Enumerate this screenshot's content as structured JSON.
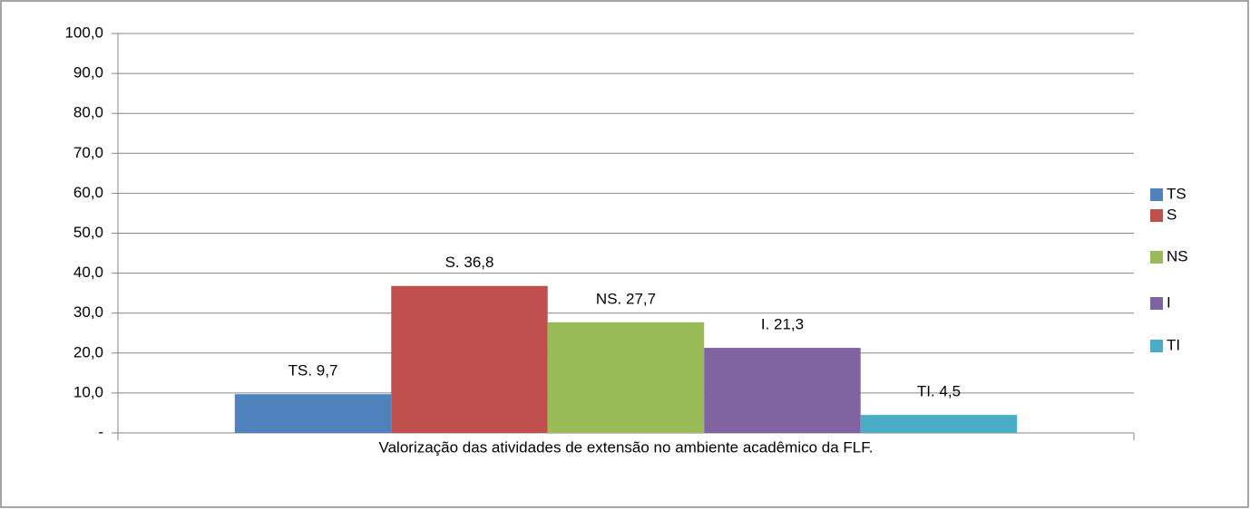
{
  "chart_data": {
    "type": "bar",
    "categories": [
      "Valorização das atividades de extensão no ambiente acadêmico da FLF."
    ],
    "series": [
      {
        "name": "TS",
        "color": "#4f81bd",
        "values": [
          9.7
        ],
        "value_labels": [
          "TS.  9,7"
        ]
      },
      {
        "name": "S",
        "color": "#c0504d",
        "values": [
          36.8
        ],
        "value_labels": [
          "S.  36,8"
        ]
      },
      {
        "name": "NS",
        "color": "#9bbb59",
        "values": [
          27.7
        ],
        "value_labels": [
          "NS.  27,7"
        ]
      },
      {
        "name": "I",
        "color": "#8064a2",
        "values": [
          21.3
        ],
        "value_labels": [
          "I.  21,3"
        ]
      },
      {
        "name": "TI",
        "color": "#4bacc6",
        "values": [
          4.5
        ],
        "value_labels": [
          "TI.  4,5"
        ]
      }
    ],
    "ylim": [
      0,
      100
    ],
    "yticks": [
      {
        "value": 0,
        "label": "-"
      },
      {
        "value": 10,
        "label": "10,0"
      },
      {
        "value": 20,
        "label": "20,0"
      },
      {
        "value": 30,
        "label": "30,0"
      },
      {
        "value": 40,
        "label": "40,0"
      },
      {
        "value": 50,
        "label": "50,0"
      },
      {
        "value": 60,
        "label": "60,0"
      },
      {
        "value": 70,
        "label": "70,0"
      },
      {
        "value": 80,
        "label": "80,0"
      },
      {
        "value": 90,
        "label": "90,0"
      },
      {
        "value": 100,
        "label": "100,0"
      }
    ],
    "grid": true,
    "legend": "right"
  }
}
